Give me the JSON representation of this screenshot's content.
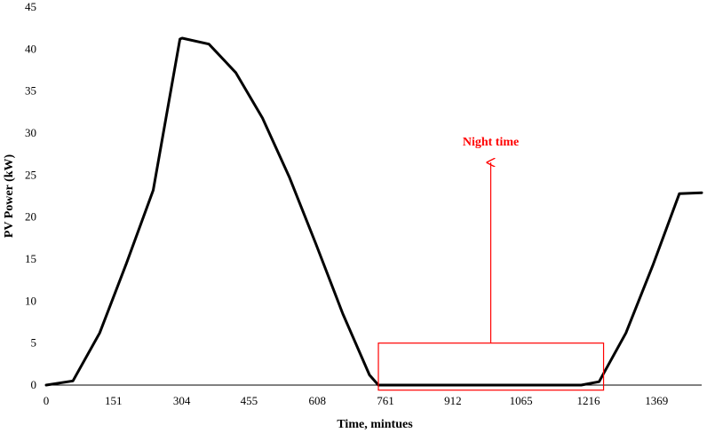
{
  "chart_data": {
    "type": "line",
    "title": "",
    "xlabel": "Time, mintues",
    "ylabel": "PV Power (kW)",
    "xlim": [
      0,
      1470
    ],
    "ylim": [
      0,
      45
    ],
    "x_ticks": [
      0,
      151,
      304,
      455,
      608,
      761,
      912,
      1065,
      1216,
      1369
    ],
    "y_ticks": [
      0,
      5,
      10,
      15,
      20,
      25,
      30,
      35,
      40,
      45
    ],
    "grid": false,
    "series": [
      {
        "color": "#000000",
        "x": [
          0,
          60,
          120,
          180,
          240,
          300,
          305,
          365,
          425,
          485,
          545,
          605,
          665,
          725,
          745,
          790,
          900,
          1000,
          1100,
          1200,
          1240,
          1300,
          1360,
          1420,
          1470
        ],
        "y": [
          0,
          0.5,
          6.2,
          14.5,
          23.2,
          41.2,
          41.3,
          40.6,
          37.2,
          31.8,
          24.8,
          16.8,
          8.5,
          1.2,
          0,
          0,
          0,
          0,
          0,
          0,
          0.4,
          6.2,
          14.2,
          22.8,
          22.9
        ]
      }
    ],
    "annotations": [
      {
        "text": "Night time",
        "color": "#ff0000",
        "box": {
          "x0": 745,
          "x1": 1250,
          "y0": -0.6,
          "y1": 5
        },
        "arrow": {
          "x": 997,
          "y_from": 5,
          "y_to": 26.5
        },
        "label_at": {
          "x": 997,
          "y": 28.5
        }
      }
    ]
  }
}
